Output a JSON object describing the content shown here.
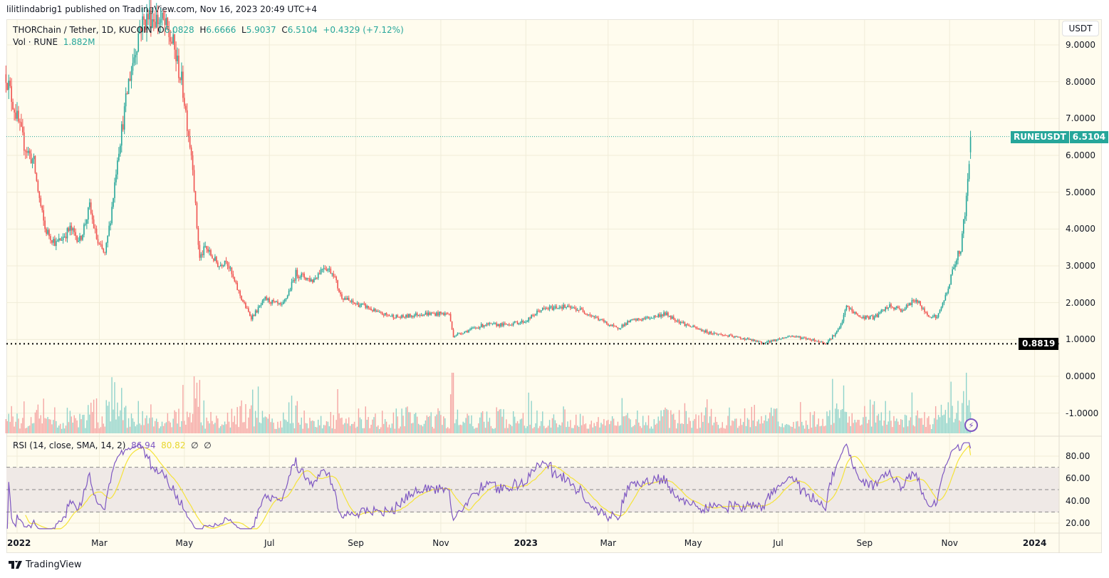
{
  "header": {
    "publisher": "lilitlindabrig1 published on TradingView.com, Nov 16, 2023 20:49 UTC+4"
  },
  "legend": {
    "symbol": "THORChain / Tether, 1D, KUCOIN",
    "o_label": "O",
    "o": "6.0828",
    "h_label": "H",
    "h": "6.6666",
    "l_label": "L",
    "l": "5.9037",
    "c_label": "C",
    "c": "6.5104",
    "change": "+0.4329 (+7.12%)",
    "vol_label": "Vol · RUNE",
    "vol": "1.882M"
  },
  "rsi_legend": {
    "label": "RSI (14, close, SMA, 14, 2)",
    "rsi": "86.94",
    "sma": "80.82",
    "v3": "∅",
    "v4": "∅"
  },
  "price_axis": {
    "currency": "USDT",
    "ticks": [
      "9.0000",
      "8.0000",
      "7.0000",
      "6.0000",
      "5.0000",
      "4.0000",
      "3.0000",
      "2.0000",
      "1.0000",
      "0.0000",
      "-1.0000"
    ],
    "last_symbol": "RUNEUSDT",
    "last_value": "6.5104",
    "hline_value": "0.8819"
  },
  "rsi_axis": {
    "ticks": [
      "80.00",
      "60.00",
      "40.00",
      "20.00"
    ]
  },
  "time_axis": [
    {
      "label": "2022",
      "date": "2022-01-01"
    },
    {
      "label": "Mar",
      "date": "2022-03-01"
    },
    {
      "label": "May",
      "date": "2022-05-01"
    },
    {
      "label": "Jul",
      "date": "2022-07-01"
    },
    {
      "label": "Sep",
      "date": "2022-09-01"
    },
    {
      "label": "Nov",
      "date": "2022-11-01"
    },
    {
      "label": "2023",
      "date": "2023-01-01"
    },
    {
      "label": "Mar",
      "date": "2023-03-01"
    },
    {
      "label": "May",
      "date": "2023-05-01"
    },
    {
      "label": "Jul",
      "date": "2023-07-01"
    },
    {
      "label": "Sep",
      "date": "2023-09-01"
    },
    {
      "label": "Nov",
      "date": "2023-11-01"
    },
    {
      "label": "2024",
      "date": "2024-01-01"
    }
  ],
  "footer": {
    "brand": "TradingView"
  },
  "colors": {
    "up": "#26a69a",
    "down": "#ef5350",
    "rsi": "#7e57c2",
    "rsi_sma": "#f5e33a",
    "background": "#fffcee"
  },
  "chart_data": {
    "type": "candlestick",
    "symbol": "RUNEUSDT",
    "interval": "1D",
    "ylim": [
      -1.5,
      9.5
    ],
    "grid": true,
    "last_candle": {
      "date": "2023-11-16",
      "open": 6.0828,
      "high": 6.6666,
      "low": 5.9037,
      "close": 6.5104
    },
    "horizontal_line": 0.8819,
    "approx_closes": [
      [
        "2021-12-24",
        8.2
      ],
      [
        "2022-01-01",
        7.0
      ],
      [
        "2022-01-06",
        6.3
      ],
      [
        "2022-01-13",
        5.8
      ],
      [
        "2022-01-21",
        4.0
      ],
      [
        "2022-01-29",
        3.6
      ],
      [
        "2022-02-08",
        4.0
      ],
      [
        "2022-02-15",
        3.7
      ],
      [
        "2022-02-22",
        4.6
      ],
      [
        "2022-02-28",
        3.6
      ],
      [
        "2022-03-05",
        3.3
      ],
      [
        "2022-03-14",
        6.0
      ],
      [
        "2022-03-22",
        8.0
      ],
      [
        "2022-03-30",
        9.5
      ],
      [
        "2022-04-06",
        9.8
      ],
      [
        "2022-04-16",
        9.6
      ],
      [
        "2022-04-23",
        9.0
      ],
      [
        "2022-04-29",
        8.0
      ],
      [
        "2022-05-01",
        7.5
      ],
      [
        "2022-05-07",
        5.8
      ],
      [
        "2022-05-12",
        3.2
      ],
      [
        "2022-05-16",
        3.5
      ],
      [
        "2022-05-26",
        3.0
      ],
      [
        "2022-05-31",
        3.2
      ],
      [
        "2022-06-10",
        2.2
      ],
      [
        "2022-06-18",
        1.6
      ],
      [
        "2022-06-28",
        2.1
      ],
      [
        "2022-07-10",
        1.9
      ],
      [
        "2022-07-20",
        2.8
      ],
      [
        "2022-08-01",
        2.6
      ],
      [
        "2022-08-09",
        3.0
      ],
      [
        "2022-08-16",
        2.8
      ],
      [
        "2022-08-21",
        2.2
      ],
      [
        "2022-08-29",
        2.0
      ],
      [
        "2022-09-08",
        1.9
      ],
      [
        "2022-09-18",
        1.7
      ],
      [
        "2022-10-03",
        1.6
      ],
      [
        "2022-10-18",
        1.7
      ],
      [
        "2022-11-07",
        1.7
      ],
      [
        "2022-11-10",
        1.1
      ],
      [
        "2022-11-17",
        1.2
      ],
      [
        "2022-12-02",
        1.4
      ],
      [
        "2022-12-17",
        1.4
      ],
      [
        "2023-01-01",
        1.5
      ],
      [
        "2023-01-11",
        1.8
      ],
      [
        "2023-01-26",
        1.9
      ],
      [
        "2023-02-10",
        1.8
      ],
      [
        "2023-02-25",
        1.5
      ],
      [
        "2023-03-07",
        1.3
      ],
      [
        "2023-03-17",
        1.5
      ],
      [
        "2023-04-01",
        1.6
      ],
      [
        "2023-04-11",
        1.7
      ],
      [
        "2023-04-26",
        1.4
      ],
      [
        "2023-05-11",
        1.2
      ],
      [
        "2023-05-26",
        1.1
      ],
      [
        "2023-06-10",
        1.0
      ],
      [
        "2023-06-20",
        0.9
      ],
      [
        "2023-06-30",
        1.0
      ],
      [
        "2023-07-10",
        1.1
      ],
      [
        "2023-07-25",
        1.0
      ],
      [
        "2023-08-04",
        0.9
      ],
      [
        "2023-08-14",
        1.3
      ],
      [
        "2023-08-19",
        1.9
      ],
      [
        "2023-08-29",
        1.6
      ],
      [
        "2023-09-08",
        1.6
      ],
      [
        "2023-09-18",
        1.9
      ],
      [
        "2023-09-28",
        1.8
      ],
      [
        "2023-10-08",
        2.1
      ],
      [
        "2023-10-15",
        1.7
      ],
      [
        "2023-10-23",
        1.6
      ],
      [
        "2023-10-30",
        2.3
      ],
      [
        "2023-11-04",
        3.0
      ],
      [
        "2023-11-09",
        3.5
      ],
      [
        "2023-11-12",
        4.5
      ],
      [
        "2023-11-14",
        5.2
      ],
      [
        "2023-11-16",
        6.5104
      ]
    ],
    "rsi": {
      "period": 14,
      "sma_period": 14,
      "last_rsi": 86.94,
      "last_sma": 80.82,
      "levels": [
        70,
        50,
        30
      ],
      "ylim": [
        15,
        92
      ]
    }
  }
}
